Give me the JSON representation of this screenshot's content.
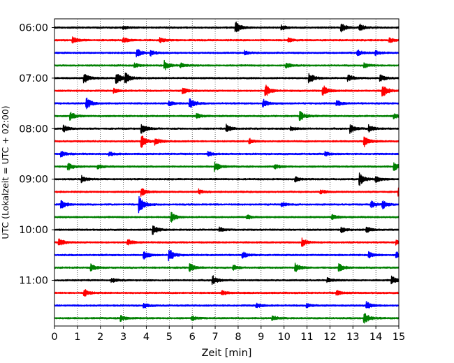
{
  "chart_data": {
    "type": "line",
    "title": "",
    "xlabel": "Zeit  [min]",
    "ylabel": "UTC (Lokalzeit = UTC + 02:00)",
    "xlim": [
      0,
      15
    ],
    "x_ticks": [
      "0",
      "1",
      "2",
      "3",
      "4",
      "5",
      "6",
      "7",
      "8",
      "9",
      "10",
      "11",
      "12",
      "13",
      "14",
      "15"
    ],
    "y_ticks": [
      "06:00",
      "07:00",
      "08:00",
      "09:00",
      "10:00",
      "11:00"
    ],
    "grid": "vertical dotted",
    "legend": "none",
    "trace_colors": [
      "#000000",
      "#ff0000",
      "#0000ff",
      "#008000"
    ],
    "traces": [
      {
        "start": "06:00",
        "events": [
          [
            7.9,
            0.9
          ],
          [
            12.5,
            0.7
          ],
          [
            13.3,
            0.5
          ],
          [
            3.0,
            0.3
          ],
          [
            9.9,
            0.35
          ]
        ]
      },
      {
        "start": "06:15",
        "events": [
          [
            0.8,
            0.5
          ],
          [
            3.0,
            0.4
          ],
          [
            4.6,
            0.35
          ],
          [
            14.6,
            0.35
          ],
          [
            10.2,
            0.3
          ]
        ]
      },
      {
        "start": "06:30",
        "events": [
          [
            3.6,
            0.6
          ],
          [
            4.2,
            0.4
          ],
          [
            13.2,
            0.45
          ],
          [
            14.0,
            0.35
          ],
          [
            8.3,
            0.3
          ]
        ]
      },
      {
        "start": "06:45",
        "events": [
          [
            4.8,
            0.7
          ],
          [
            5.5,
            0.35
          ],
          [
            10.1,
            0.45
          ],
          [
            13.5,
            0.35
          ],
          [
            3.5,
            0.3
          ]
        ]
      },
      {
        "start": "07:00",
        "events": [
          [
            1.3,
            0.8
          ],
          [
            2.7,
            0.9
          ],
          [
            3.1,
            0.7
          ],
          [
            11.1,
            0.8
          ],
          [
            12.8,
            0.5
          ],
          [
            14.2,
            0.5
          ]
        ]
      },
      {
        "start": "07:15",
        "events": [
          [
            9.2,
            0.9
          ],
          [
            11.7,
            0.9
          ],
          [
            14.3,
            1.0
          ],
          [
            5.6,
            0.45
          ],
          [
            2.6,
            0.3
          ]
        ]
      },
      {
        "start": "07:30",
        "events": [
          [
            1.4,
            0.9
          ],
          [
            5.9,
            0.8
          ],
          [
            9.1,
            0.6
          ],
          [
            12.3,
            0.45
          ],
          [
            5.0,
            0.35
          ]
        ]
      },
      {
        "start": "07:45",
        "events": [
          [
            0.7,
            0.6
          ],
          [
            10.7,
            0.7
          ],
          [
            6.2,
            0.4
          ],
          [
            14.8,
            0.35
          ]
        ]
      },
      {
        "start": "08:00",
        "events": [
          [
            0.4,
            0.5
          ],
          [
            3.8,
            0.8
          ],
          [
            7.5,
            0.6
          ],
          [
            12.9,
            0.7
          ],
          [
            13.7,
            0.6
          ],
          [
            10.3,
            0.35
          ]
        ]
      },
      {
        "start": "08:15",
        "events": [
          [
            3.8,
            0.9
          ],
          [
            4.4,
            0.6
          ],
          [
            13.5,
            0.8
          ],
          [
            8.5,
            0.4
          ]
        ]
      },
      {
        "start": "08:30",
        "events": [
          [
            0.3,
            0.4
          ],
          [
            2.4,
            0.3
          ],
          [
            6.7,
            0.35
          ],
          [
            11.8,
            0.3
          ]
        ]
      },
      {
        "start": "08:45",
        "events": [
          [
            0.6,
            0.6
          ],
          [
            7.0,
            0.7
          ],
          [
            14.8,
            0.6
          ],
          [
            1.9,
            0.35
          ],
          [
            9.6,
            0.35
          ]
        ]
      },
      {
        "start": "09:00",
        "events": [
          [
            1.2,
            0.5
          ],
          [
            13.3,
            0.9
          ],
          [
            14.0,
            0.5
          ],
          [
            10.5,
            0.35
          ]
        ]
      },
      {
        "start": "09:15",
        "events": [
          [
            3.8,
            0.6
          ],
          [
            15.0,
            0.9
          ],
          [
            6.3,
            0.35
          ],
          [
            11.6,
            0.3
          ]
        ]
      },
      {
        "start": "09:30",
        "events": [
          [
            3.7,
            1.3
          ],
          [
            0.3,
            0.6
          ],
          [
            13.8,
            0.5
          ],
          [
            14.3,
            0.6
          ],
          [
            9.9,
            0.35
          ]
        ]
      },
      {
        "start": "09:45",
        "events": [
          [
            5.1,
            0.7
          ],
          [
            8.4,
            0.35
          ],
          [
            12.1,
            0.35
          ]
        ]
      },
      {
        "start": "10:00",
        "events": [
          [
            4.3,
            0.7
          ],
          [
            13.6,
            0.5
          ],
          [
            12.5,
            0.4
          ],
          [
            7.2,
            0.3
          ]
        ]
      },
      {
        "start": "10:15",
        "events": [
          [
            0.2,
            0.6
          ],
          [
            3.2,
            0.5
          ],
          [
            10.8,
            0.6
          ],
          [
            14.9,
            0.35
          ]
        ]
      },
      {
        "start": "10:30",
        "events": [
          [
            5.0,
            1.0
          ],
          [
            3.9,
            0.6
          ],
          [
            8.2,
            0.45
          ],
          [
            13.7,
            0.5
          ],
          [
            14.9,
            0.45
          ]
        ]
      },
      {
        "start": "10:45",
        "events": [
          [
            1.6,
            0.5
          ],
          [
            5.9,
            0.6
          ],
          [
            10.5,
            0.7
          ],
          [
            12.4,
            0.6
          ],
          [
            7.8,
            0.35
          ]
        ]
      },
      {
        "start": "11:00",
        "events": [
          [
            6.9,
            0.7
          ],
          [
            14.7,
            0.6
          ],
          [
            2.5,
            0.3
          ],
          [
            11.9,
            0.35
          ]
        ]
      },
      {
        "start": "11:15",
        "events": [
          [
            1.3,
            0.6
          ],
          [
            7.3,
            0.35
          ],
          [
            12.3,
            0.35
          ]
        ]
      },
      {
        "start": "11:30",
        "events": [
          [
            13.6,
            0.6
          ],
          [
            3.9,
            0.35
          ],
          [
            8.8,
            0.35
          ],
          [
            11.0,
            0.3
          ]
        ]
      },
      {
        "start": "11:45",
        "events": [
          [
            13.5,
            0.9
          ],
          [
            2.9,
            0.5
          ],
          [
            6.0,
            0.35
          ],
          [
            9.5,
            0.35
          ]
        ]
      }
    ]
  }
}
